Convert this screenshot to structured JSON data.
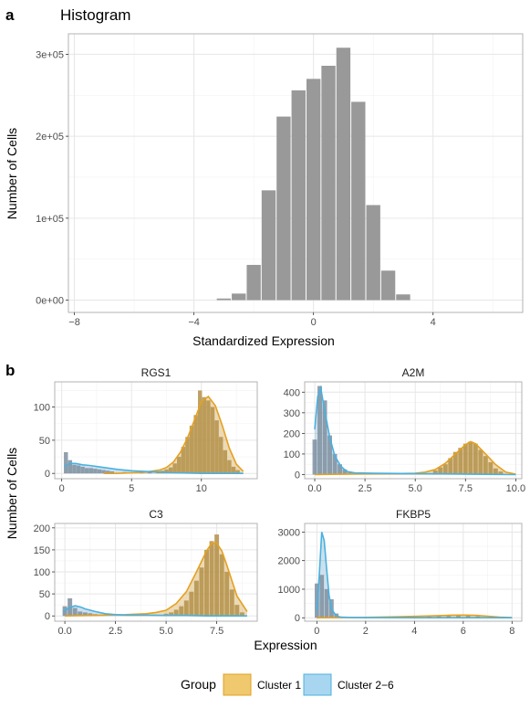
{
  "panel_a": {
    "letter": "a",
    "title": "Histogram"
  },
  "panel_b": {
    "letter": "b",
    "ylabel": "Number of Cells",
    "xlabel": "Expression"
  },
  "legend": {
    "title": "Group",
    "items": [
      {
        "label": "Cluster 1",
        "fill": "#f0c86e",
        "stroke": "#e0a020"
      },
      {
        "label": "Cluster 2−6",
        "fill": "#a8d6f0",
        "stroke": "#4db0e0"
      }
    ]
  },
  "colors": {
    "hist_bar": "#999999",
    "cluster1_fill": "#c8962e",
    "cluster1_line": "#e5a021",
    "cluster26_fill": "#6fa7c8",
    "cluster26_line": "#49b1e0",
    "gray_bar": "#8c8c8c",
    "grid": "#e6e6e6",
    "panel_border": "#b3b3b3"
  },
  "chart_data": [
    {
      "id": "histogram",
      "type": "bar",
      "title": "Histogram",
      "xlabel": "Standardized Expression",
      "ylabel": "Number of Cells",
      "xlim": [
        -8.2,
        7.0
      ],
      "ylim": [
        -15000,
        325000
      ],
      "xticks": [
        -8,
        -4,
        0,
        4
      ],
      "xtick_labels": [
        "−8",
        "−4",
        "0",
        "4"
      ],
      "yticks": [
        0,
        100000,
        200000,
        300000
      ],
      "ytick_labels": [
        "0e+00",
        "1e+05",
        "2e+05",
        "3e+05"
      ],
      "binwidth": 0.5,
      "x": [
        -3.0,
        -2.5,
        -2.0,
        -1.5,
        -1.0,
        -0.5,
        0.0,
        0.5,
        1.0,
        1.5,
        2.0,
        2.5,
        3.0
      ],
      "values": [
        2000,
        8000,
        43000,
        134000,
        224000,
        256000,
        270000,
        286000,
        308000,
        242000,
        116000,
        36000,
        7000
      ]
    },
    {
      "id": "RGS1",
      "type": "bar",
      "title": "RGS1",
      "xlim": [
        -0.5,
        14.0
      ],
      "ylim": [
        -8,
        138
      ],
      "xticks": [
        0,
        5,
        10
      ],
      "xtick_labels": [
        "0",
        "5",
        "10"
      ],
      "yticks": [
        0,
        50,
        100
      ],
      "ytick_labels": [
        "0",
        "50",
        "100"
      ],
      "binwidth": 0.33,
      "gray_bars": {
        "x": [
          0.3,
          0.6,
          0.9,
          1.2,
          1.5,
          1.8,
          2.1,
          2.4,
          2.7,
          3.0,
          3.3,
          3.6,
          4.5,
          5.7,
          6.3,
          6.9,
          7.2,
          7.5,
          7.8,
          8.1,
          8.4,
          8.7,
          9.0,
          9.3,
          9.6,
          9.9,
          10.2,
          10.5,
          10.8,
          11.1,
          11.4,
          11.7,
          12.0,
          12.3,
          12.6
        ],
        "values": [
          32,
          20,
          13,
          12,
          10,
          8,
          8,
          7,
          6,
          5,
          4,
          3,
          2,
          2,
          2,
          3,
          4,
          6,
          9,
          15,
          25,
          40,
          55,
          72,
          88,
          125,
          115,
          110,
          100,
          80,
          55,
          35,
          20,
          10,
          5
        ]
      },
      "series": [
        {
          "name": "Cluster 1",
          "x": [
            3,
            4,
            5,
            6,
            7,
            7.5,
            8,
            8.5,
            9,
            9.5,
            10,
            10.5,
            11,
            11.5,
            12,
            12.5,
            13
          ],
          "values": [
            0,
            0,
            1,
            2,
            5,
            9,
            17,
            32,
            53,
            80,
            108,
            116,
            102,
            72,
            38,
            14,
            3
          ]
        },
        {
          "name": "Cluster 2−6",
          "x": [
            0.2,
            0.6,
            1,
            1.5,
            2,
            3,
            4,
            5,
            6,
            7,
            8,
            10,
            13
          ],
          "values": [
            11,
            15,
            15,
            13,
            12,
            9,
            6,
            4,
            3,
            2,
            1,
            0,
            0
          ]
        }
      ]
    },
    {
      "id": "A2M",
      "type": "bar",
      "title": "A2M",
      "xlim": [
        -0.5,
        10.3
      ],
      "ylim": [
        -20,
        450
      ],
      "xticks": [
        0,
        2.5,
        5,
        7.5,
        10
      ],
      "xtick_labels": [
        "0.0",
        "2.5",
        "5.0",
        "7.5",
        "10.0"
      ],
      "yticks": [
        0,
        100,
        200,
        300,
        400
      ],
      "ytick_labels": [
        "0",
        "100",
        "200",
        "300",
        "400"
      ],
      "binwidth": 0.25,
      "gray_bars": {
        "x": [
          0.0,
          0.25,
          0.5,
          0.75,
          1.0,
          1.25,
          1.5,
          1.75,
          6.0,
          6.25,
          6.5,
          6.75,
          7.0,
          7.25,
          7.5,
          7.75,
          8.0,
          8.25,
          8.5,
          8.75,
          9.0,
          9.25
        ],
        "values": [
          170,
          430,
          360,
          190,
          100,
          50,
          25,
          10,
          20,
          35,
          50,
          80,
          110,
          130,
          150,
          160,
          150,
          120,
          90,
          60,
          30,
          15
        ]
      },
      "series": [
        {
          "name": "Cluster 1",
          "x": [
            0,
            2,
            4,
            5,
            5.5,
            6,
            6.5,
            7,
            7.5,
            7.75,
            8,
            8.5,
            9,
            9.5,
            10
          ],
          "values": [
            0,
            3,
            5,
            6,
            12,
            25,
            55,
            100,
            145,
            160,
            150,
            100,
            48,
            12,
            2
          ]
        },
        {
          "name": "Cluster 2−6",
          "x": [
            0,
            0.15,
            0.3,
            0.5,
            0.75,
            1.0,
            1.3,
            1.6,
            2,
            3,
            5,
            7,
            9,
            10
          ],
          "values": [
            220,
            380,
            420,
            310,
            180,
            90,
            40,
            15,
            8,
            6,
            5,
            3,
            1,
            0
          ]
        }
      ]
    },
    {
      "id": "C3",
      "type": "bar",
      "title": "C3",
      "xlim": [
        -0.5,
        9.5
      ],
      "ylim": [
        -12,
        210
      ],
      "xticks": [
        0,
        2.5,
        5,
        7.5
      ],
      "xtick_labels": [
        "0.0",
        "2.5",
        "5.0",
        "7.5"
      ],
      "yticks": [
        0,
        50,
        100,
        150,
        200
      ],
      "ytick_labels": [
        "0",
        "50",
        "100",
        "150",
        "200"
      ],
      "binwidth": 0.25,
      "gray_bars": {
        "x": [
          0.0,
          0.25,
          0.5,
          0.75,
          1.0,
          1.25,
          1.5,
          5.0,
          5.25,
          5.5,
          5.75,
          6.0,
          6.25,
          6.5,
          6.75,
          7.0,
          7.25,
          7.5,
          7.75,
          8.0,
          8.25,
          8.5,
          8.75
        ],
        "values": [
          22,
          40,
          18,
          10,
          8,
          6,
          4,
          5,
          8,
          14,
          22,
          35,
          55,
          80,
          110,
          150,
          170,
          185,
          140,
          100,
          60,
          25,
          8
        ]
      },
      "series": [
        {
          "name": "Cluster 1",
          "x": [
            0,
            2,
            3,
            4,
            4.5,
            5,
            5.5,
            6,
            6.5,
            7,
            7.25,
            7.5,
            7.75,
            8,
            8.5,
            9
          ],
          "values": [
            0,
            2,
            3,
            5,
            8,
            13,
            28,
            55,
            100,
            148,
            165,
            165,
            148,
            115,
            45,
            10
          ]
        },
        {
          "name": "Cluster 2−6",
          "x": [
            -0.1,
            0.2,
            0.5,
            0.8,
            1.0,
            1.5,
            2,
            2.5,
            3,
            4,
            5,
            6,
            7,
            8,
            9
          ],
          "values": [
            10,
            18,
            23,
            20,
            16,
            10,
            5,
            3,
            2,
            2,
            1,
            1,
            0,
            0,
            0
          ]
        }
      ]
    },
    {
      "id": "FKBP5",
      "type": "bar",
      "title": "FKBP5",
      "xlim": [
        -0.5,
        8.4
      ],
      "ylim": [
        -120,
        3300
      ],
      "xticks": [
        0,
        2,
        4,
        6,
        8
      ],
      "xtick_labels": [
        "0",
        "2",
        "4",
        "6",
        "8"
      ],
      "yticks": [
        0,
        1000,
        2000,
        3000
      ],
      "ytick_labels": [
        "0",
        "1000",
        "2000",
        "3000"
      ],
      "binwidth": 0.2,
      "gray_bars": {
        "x": [
          0.0,
          0.2,
          0.4,
          0.6,
          0.8,
          4.6,
          5.0,
          5.4,
          5.8,
          6.2,
          6.6
        ],
        "values": [
          1200,
          1500,
          1000,
          650,
          150,
          50,
          70,
          90,
          100,
          80,
          50
        ]
      },
      "series": [
        {
          "name": "Cluster 1",
          "x": [
            0,
            1,
            2,
            3,
            4,
            5,
            5.5,
            6,
            6.5,
            7,
            7.5,
            8
          ],
          "values": [
            0,
            5,
            15,
            30,
            50,
            75,
            90,
            95,
            85,
            55,
            20,
            5
          ]
        },
        {
          "name": "Cluster 2−6",
          "x": [
            0,
            0.1,
            0.2,
            0.3,
            0.4,
            0.5,
            0.6,
            0.8,
            1,
            1.5,
            2,
            4,
            8
          ],
          "values": [
            250,
            1500,
            3000,
            2700,
            1700,
            800,
            300,
            60,
            20,
            10,
            5,
            2,
            0
          ]
        }
      ]
    }
  ]
}
